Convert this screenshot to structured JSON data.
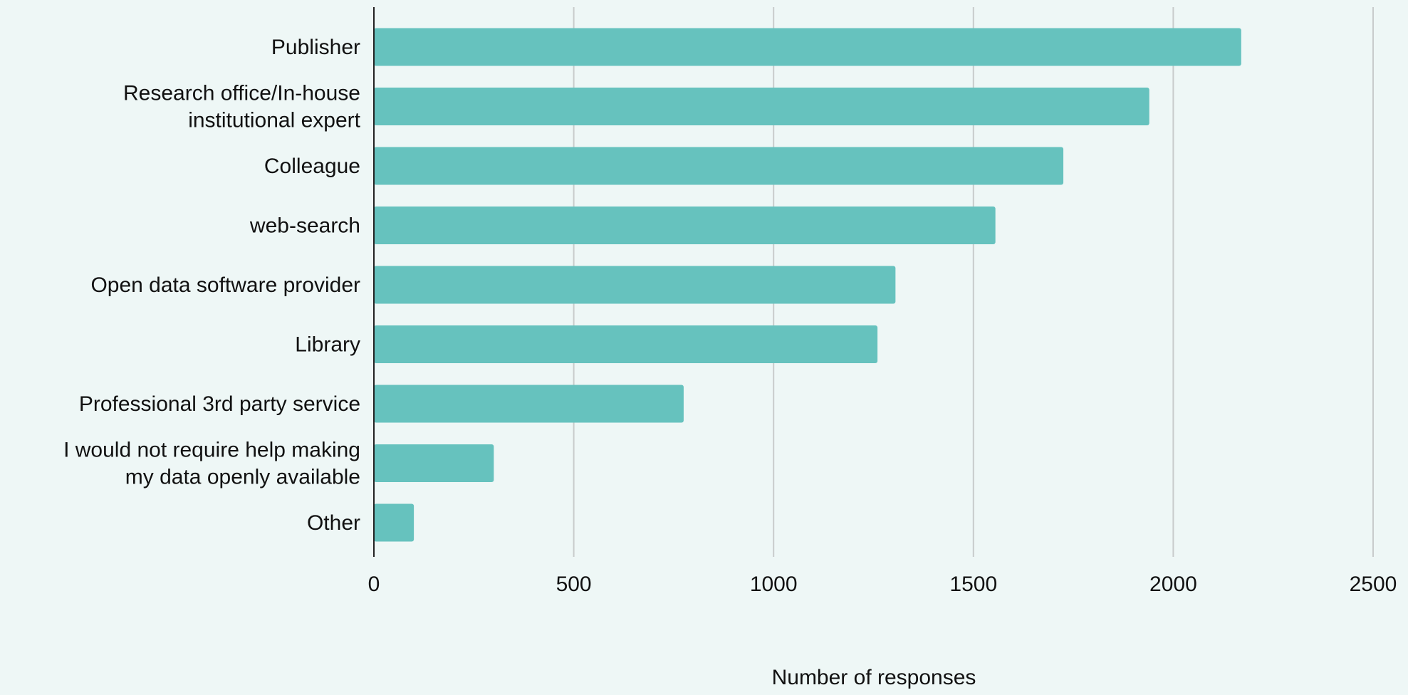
{
  "chart_data": {
    "type": "bar",
    "orientation": "horizontal",
    "title": "",
    "xlabel": "Number of responses",
    "ylabel": "",
    "xlim": [
      0,
      2500
    ],
    "x_ticks": [
      0,
      500,
      1000,
      1500,
      2000,
      2500
    ],
    "grid": "vertical",
    "legend": "none",
    "bar_color": "#66c2be",
    "categories": [
      [
        "Publisher"
      ],
      [
        "Research office/In-house",
        "institutional expert"
      ],
      [
        "Colleague"
      ],
      [
        "web-search"
      ],
      [
        "Open data software provider"
      ],
      [
        "Library"
      ],
      [
        "Professional 3rd party service"
      ],
      [
        "I would not require help making",
        "my data openly available"
      ],
      [
        "Other"
      ]
    ],
    "values": [
      2170,
      1940,
      1725,
      1555,
      1305,
      1260,
      775,
      300,
      100
    ]
  }
}
